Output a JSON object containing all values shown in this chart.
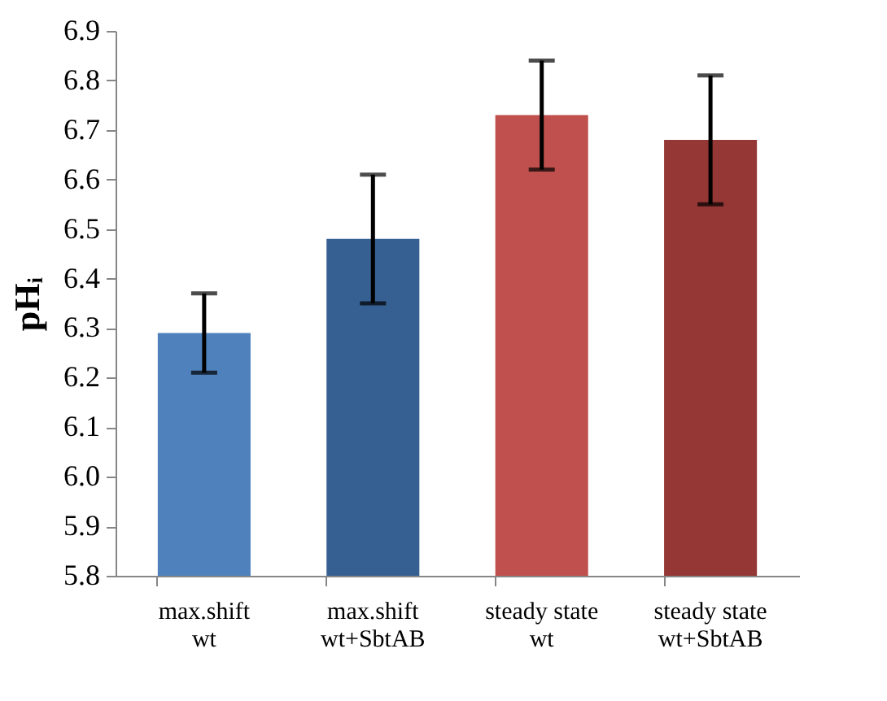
{
  "chart_data": {
    "type": "bar",
    "ylabel": "pHᵢ",
    "categories": [
      "max.shift\nwt",
      "max.shift\nwt+SbtAB",
      "steady state\nwt",
      "steady state\nwt+SbtAB"
    ],
    "values": [
      6.29,
      6.48,
      6.73,
      6.68
    ],
    "colors": [
      "#4f81bd",
      "#376092",
      "#c0504d",
      "#953735"
    ],
    "errors": [
      0.08,
      0.13,
      0.11,
      0.13
    ],
    "ylim": [
      5.8,
      6.9
    ],
    "yticks": [
      5.8,
      5.9,
      {
        "value": 6,
        "label": "6.0"
      },
      6.1,
      6.2,
      6.3,
      6.4,
      6.5,
      6.6,
      6.7,
      6.8,
      6.9
    ],
    "grid": false
  }
}
